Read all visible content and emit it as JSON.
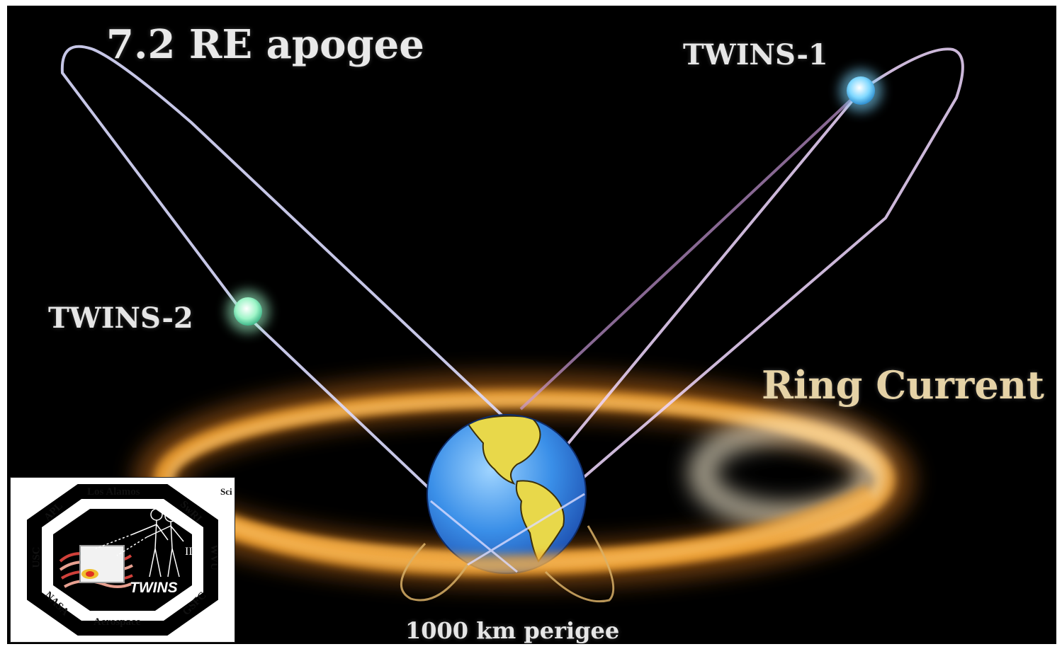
{
  "diagram": {
    "labels": {
      "apogee": "7.2 RE apogee",
      "twins1": "TWINS-1",
      "twins2": "TWINS-2",
      "ring_current": "Ring Current",
      "perigee": "1000 km perigee"
    },
    "colors": {
      "background": "#000000",
      "ring": "#f0a030",
      "orbit_left": "#dcdcff",
      "orbit_right": "#f0d8ff",
      "twins1_satellite": "#7fd8ff",
      "twins2_satellite": "#9ff5c8",
      "ocean": "#3a8fe8",
      "land": "#e8d84a"
    }
  },
  "logo": {
    "organizations": {
      "top": "Los Alamos",
      "upper_left": "APL",
      "upper_right": "SwRI",
      "left": "USC",
      "right": "WVU",
      "lower_left": "NASA",
      "lower_right": "GSFC",
      "bottom": "Aerospace",
      "clipped": "Sci"
    },
    "mission": "TWINS",
    "numeral": "II"
  }
}
